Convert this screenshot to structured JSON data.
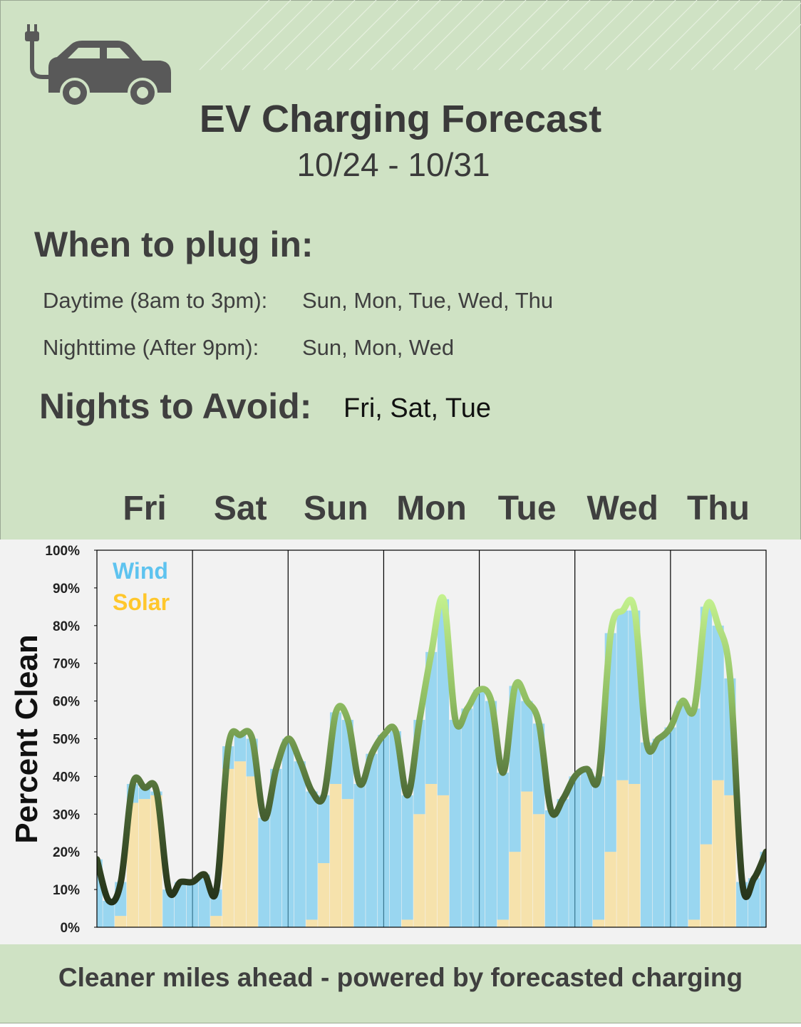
{
  "header": {
    "title": "EV Charging Forecast",
    "date_range": "10/24 - 10/31"
  },
  "plug_in": {
    "heading": "When to plug in:",
    "daytime_label": "Daytime (8am to 3pm):",
    "daytime_days": "Sun, Mon, Tue, Wed, Thu",
    "nighttime_label": "Nighttime  (After 9pm):",
    "nighttime_days": "Sun, Mon, Wed"
  },
  "avoid": {
    "heading": "Nights to Avoid:",
    "days": "Fri, Sat, Tue"
  },
  "chart_data": {
    "type": "stacked-bar",
    "y_label": "Percent Clean",
    "categories": [
      "Fri",
      "Sat",
      "Sun",
      "Mon",
      "Tue",
      "Wed",
      "Thu"
    ],
    "x": [
      0,
      3,
      6,
      9,
      12,
      15,
      18,
      21,
      24,
      27,
      30,
      33,
      36,
      39,
      42,
      45,
      48,
      51,
      54,
      57,
      60,
      63,
      66,
      69,
      72,
      75,
      78,
      81,
      84,
      87,
      90,
      93,
      96,
      99,
      102,
      105,
      108,
      111,
      114,
      117,
      120,
      123,
      126,
      129,
      132,
      135,
      138,
      141,
      144,
      147,
      150,
      153,
      156,
      159,
      162,
      165,
      168
    ],
    "xlim": [
      0,
      168
    ],
    "ylim": [
      0,
      100
    ],
    "yticks": [
      {
        "value": 0,
        "label": "0%"
      },
      {
        "value": 10,
        "label": "10%"
      },
      {
        "value": 20,
        "label": "20%"
      },
      {
        "value": 30,
        "label": "30%"
      },
      {
        "value": 40,
        "label": "40%"
      },
      {
        "value": 50,
        "label": "50%"
      },
      {
        "value": 60,
        "label": "60%"
      },
      {
        "value": 70,
        "label": "70%"
      },
      {
        "value": 80,
        "label": "80%"
      },
      {
        "value": 90,
        "label": "90%"
      },
      {
        "value": 100,
        "label": "100%"
      }
    ],
    "series": [
      {
        "name": "Solar",
        "color": "#ffc72c",
        "values": [
          0,
          0,
          3,
          33,
          34,
          35,
          0,
          0,
          0,
          0,
          3,
          42,
          44,
          40,
          0,
          0,
          0,
          0,
          2,
          17,
          38,
          34,
          0,
          0,
          0,
          0,
          2,
          30,
          38,
          35,
          0,
          0,
          0,
          0,
          2,
          20,
          36,
          30,
          0,
          0,
          0,
          0,
          2,
          20,
          39,
          38,
          0,
          0,
          0,
          0,
          2,
          22,
          39,
          35,
          0,
          0,
          0
        ]
      },
      {
        "name": "Wind",
        "color": "#5ec3ef",
        "values": [
          18,
          7,
          9,
          5,
          3,
          1,
          10,
          12,
          12,
          14,
          7,
          6,
          7,
          10,
          29,
          42,
          50,
          44,
          34,
          18,
          19,
          21,
          38,
          46,
          51,
          52,
          33,
          25,
          35,
          52,
          55,
          58,
          63,
          60,
          39,
          44,
          24,
          24,
          31,
          34,
          40,
          42,
          38,
          58,
          45,
          46,
          49,
          50,
          53,
          60,
          56,
          63,
          41,
          31,
          12,
          13,
          20
        ]
      }
    ],
    "legend": "top-left"
  },
  "footer": {
    "text": "Cleaner miles ahead - powered by forecasted charging"
  }
}
